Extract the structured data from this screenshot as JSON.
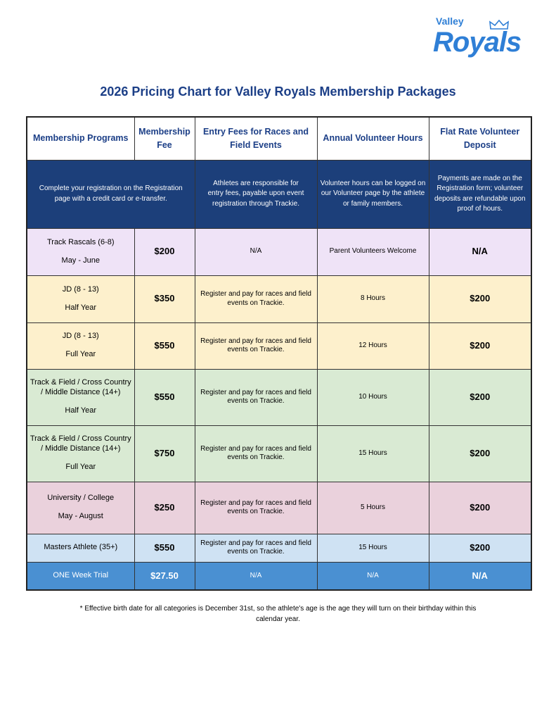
{
  "logo": {
    "top": "Valley",
    "main": "Royals"
  },
  "title": "2026 Pricing Chart for Valley Royals Membership Packages",
  "headers": [
    "Membership Programs",
    "Membership Fee",
    "Entry Fees for Races and Field Events",
    "Annual Volunteer Hours",
    "Flat Rate Volunteer Deposit"
  ],
  "info": [
    "Complete your registration on the Registration page with a credit card or e-transfer.",
    "Athletes are responsible for entry fees, payable upon event registration through Trackie.",
    "Volunteer hours can be logged on our Volunteer page by the athlete or family members.",
    "Payments are made on the Registration form; volunteer deposits are refundable upon proof of hours."
  ],
  "rows": [
    {
      "program": "Track Rascals (6-8)",
      "period": "May - June",
      "fee": "$200",
      "entry": "N/A",
      "hours": "Parent Volunteers Welcome",
      "deposit": "N/A"
    },
    {
      "program": "JD (8 - 13)",
      "period": "Half Year",
      "fee": "$350",
      "entry": "Register and pay for races and field events on Trackie.",
      "hours": "8 Hours",
      "deposit": "$200"
    },
    {
      "program": "JD (8 - 13)",
      "period": "Full Year",
      "fee": "$550",
      "entry": "Register and pay for races and field events on Trackie.",
      "hours": "12 Hours",
      "deposit": "$200"
    },
    {
      "program": "Track & Field / Cross Country / Middle Distance (14+)",
      "period": "Half Year",
      "fee": "$550",
      "entry": "Register and pay for races and field events on Trackie.",
      "hours": "10 Hours",
      "deposit": "$200"
    },
    {
      "program": "Track & Field / Cross Country / Middle Distance (14+)",
      "period": "Full Year",
      "fee": "$750",
      "entry": "Register and pay for races and field events on Trackie.",
      "hours": "15 Hours",
      "deposit": "$200"
    },
    {
      "program": "University / College",
      "period": "May - August",
      "fee": "$250",
      "entry": "Register and pay for races and field events on Trackie.",
      "hours": "5 Hours",
      "deposit": "$200"
    },
    {
      "program": "Masters Athlete (35+)",
      "period": "",
      "fee": "$550",
      "entry": "Register and pay for races and field events on Trackie.",
      "hours": "15 Hours",
      "deposit": "$200"
    },
    {
      "program": "ONE Week Trial",
      "period": "",
      "fee": "$27.50",
      "entry": "N/A",
      "hours": "N/A",
      "deposit": "N/A"
    }
  ],
  "footnote": "* Effective birth date for all categories is December 31st, so the athlete's age is the age they will turn on their birthday within this calendar year."
}
